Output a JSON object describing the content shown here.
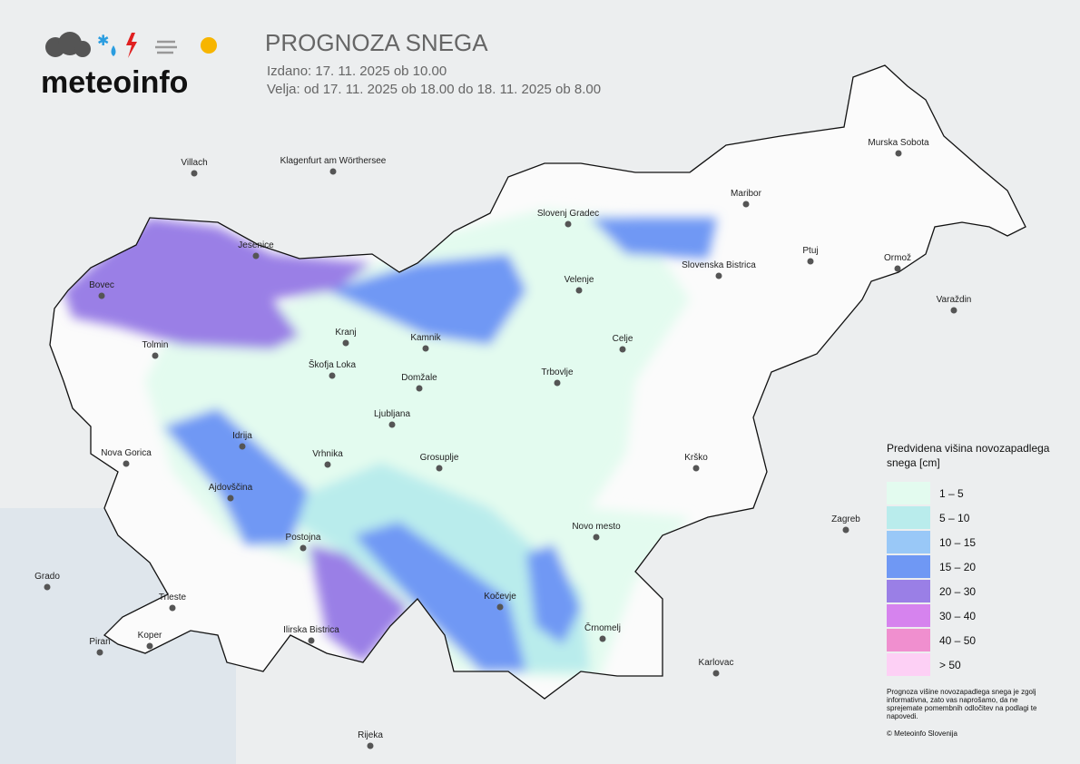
{
  "header": {
    "brand": "meteoinfo",
    "title": "PROGNOZA SNEGA",
    "issued": "Izdano: 17. 11. 2025 ob 10.00",
    "valid": "Velja: od 17. 11. 2025 ob 18.00 do 18. 11. 2025 ob 8.00"
  },
  "cities": [
    "Villach",
    "Klagenfurt am Wörthersee",
    "Jesenice",
    "Bovec",
    "Tolmin",
    "Kranj",
    "Kamnik",
    "Škofja Loka",
    "Domžale",
    "Ljubljana",
    "Idrija",
    "Vrhnika",
    "Nova Gorica",
    "Ajdovščina",
    "Postojna",
    "Grosuplje",
    "Trbovlje",
    "Celje",
    "Velenje",
    "Slovenj Gradec",
    "Maribor",
    "Slovenska Bistrica",
    "Ptuj",
    "Ormož",
    "Murska Sobota",
    "Varaždin",
    "Krško",
    "Zagreb",
    "Novo mesto",
    "Kočevje",
    "Črnomelj",
    "Karlovac",
    "Ilirska Bistrica",
    "Koper",
    "Piran",
    "Trieste",
    "Grado",
    "Rijeka"
  ],
  "legend": {
    "title": "Predvidena višina novozapadlega snega [cm]",
    "items": [
      {
        "label": "1 – 5",
        "color": "#e3fbef"
      },
      {
        "label": "5 – 10",
        "color": "#b9ecec"
      },
      {
        "label": "10 – 15",
        "color": "#99c8f7"
      },
      {
        "label": "15 – 20",
        "color": "#6f98f4"
      },
      {
        "label": "20 – 30",
        "color": "#9a7fe6"
      },
      {
        "label": "30 – 40",
        "color": "#d683ee"
      },
      {
        "label": "40 – 50",
        "color": "#f08fcf"
      },
      {
        "label": "> 50",
        "color": "#fdd0f5"
      }
    ]
  },
  "note": "Prognoza višine novozapadlega snega je zgolj informativna, zato vas naprošamo, da ne sprejemate pomembnih odločitev na podlagi te napovedi.",
  "copyright": "© Meteoinfo Slovenija"
}
